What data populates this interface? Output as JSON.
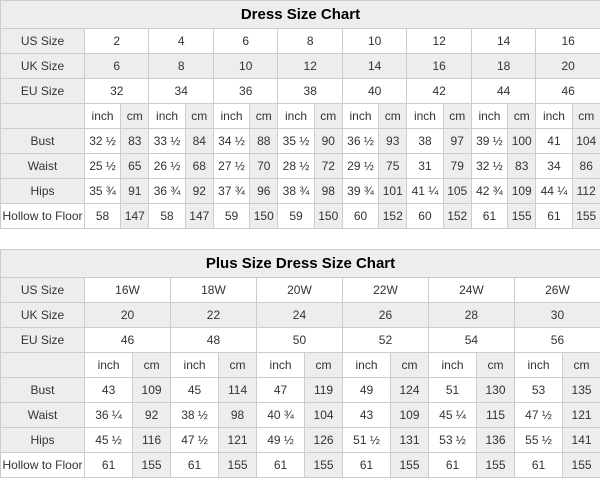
{
  "colors": {
    "shade": "#ededed",
    "border": "#cccccc",
    "text": "#333333",
    "title_text": "#000000",
    "background": "#ffffff"
  },
  "tables": [
    {
      "title": "Dress Size Chart",
      "corner_label": "",
      "unit_labels": [
        "inch",
        "cm"
      ],
      "size_rows": [
        {
          "label": "US Size",
          "shaded": false,
          "values": [
            "2",
            "4",
            "6",
            "8",
            "10",
            "12",
            "14",
            "16"
          ]
        },
        {
          "label": "UK Size",
          "shaded": true,
          "values": [
            "6",
            "8",
            "10",
            "12",
            "14",
            "16",
            "18",
            "20"
          ]
        },
        {
          "label": "EU Size",
          "shaded": false,
          "values": [
            "32",
            "34",
            "36",
            "38",
            "40",
            "42",
            "44",
            "46"
          ]
        }
      ],
      "measure_rows": [
        {
          "label": "Bust",
          "label_shaded": true,
          "values": [
            [
              "32 ½",
              "83"
            ],
            [
              "33 ½",
              "84"
            ],
            [
              "34 ½",
              "88"
            ],
            [
              "35 ½",
              "90"
            ],
            [
              "36 ½",
              "93"
            ],
            [
              "38",
              "97"
            ],
            [
              "39 ½",
              "100"
            ],
            [
              "41",
              "104"
            ]
          ]
        },
        {
          "label": "Waist",
          "label_shaded": true,
          "values": [
            [
              "25 ½",
              "65"
            ],
            [
              "26 ½",
              "68"
            ],
            [
              "27 ½",
              "70"
            ],
            [
              "28 ½",
              "72"
            ],
            [
              "29 ½",
              "75"
            ],
            [
              "31",
              "79"
            ],
            [
              "32 ½",
              "83"
            ],
            [
              "34",
              "86"
            ]
          ]
        },
        {
          "label": "Hips",
          "label_shaded": true,
          "values": [
            [
              "35 ¾",
              "91"
            ],
            [
              "36 ¾",
              "92"
            ],
            [
              "37 ¾",
              "96"
            ],
            [
              "38 ¾",
              "98"
            ],
            [
              "39 ¾",
              "101"
            ],
            [
              "41 ¼",
              "105"
            ],
            [
              "42 ¾",
              "109"
            ],
            [
              "44 ¼",
              "112"
            ]
          ]
        },
        {
          "label": "Hollow to Floor",
          "label_shaded": false,
          "values": [
            [
              "58",
              "147"
            ],
            [
              "58",
              "147"
            ],
            [
              "59",
              "150"
            ],
            [
              "59",
              "150"
            ],
            [
              "60",
              "152"
            ],
            [
              "60",
              "152"
            ],
            [
              "61",
              "155"
            ],
            [
              "61",
              "155"
            ]
          ]
        }
      ]
    },
    {
      "title": "Plus Size Dress Size Chart",
      "corner_label": "",
      "unit_labels": [
        "inch",
        "cm"
      ],
      "size_rows": [
        {
          "label": "US Size",
          "shaded": false,
          "values": [
            "16W",
            "18W",
            "20W",
            "22W",
            "24W",
            "26W"
          ]
        },
        {
          "label": "UK Size",
          "shaded": true,
          "values": [
            "20",
            "22",
            "24",
            "26",
            "28",
            "30"
          ]
        },
        {
          "label": "EU Size",
          "shaded": false,
          "values": [
            "46",
            "48",
            "50",
            "52",
            "54",
            "56"
          ]
        }
      ],
      "measure_rows": [
        {
          "label": "Bust",
          "label_shaded": true,
          "values": [
            [
              "43",
              "109"
            ],
            [
              "45",
              "114"
            ],
            [
              "47",
              "119"
            ],
            [
              "49",
              "124"
            ],
            [
              "51",
              "130"
            ],
            [
              "53",
              "135"
            ]
          ]
        },
        {
          "label": "Waist",
          "label_shaded": true,
          "values": [
            [
              "36 ¼",
              "92"
            ],
            [
              "38 ½",
              "98"
            ],
            [
              "40 ¾",
              "104"
            ],
            [
              "43",
              "109"
            ],
            [
              "45 ¼",
              "115"
            ],
            [
              "47 ½",
              "121"
            ]
          ]
        },
        {
          "label": "Hips",
          "label_shaded": true,
          "values": [
            [
              "45 ½",
              "116"
            ],
            [
              "47 ½",
              "121"
            ],
            [
              "49 ½",
              "126"
            ],
            [
              "51 ½",
              "131"
            ],
            [
              "53 ½",
              "136"
            ],
            [
              "55 ½",
              "141"
            ]
          ]
        },
        {
          "label": "Hollow to Floor",
          "label_shaded": false,
          "values": [
            [
              "61",
              "155"
            ],
            [
              "61",
              "155"
            ],
            [
              "61",
              "155"
            ],
            [
              "61",
              "155"
            ],
            [
              "61",
              "155"
            ],
            [
              "61",
              "155"
            ]
          ]
        }
      ]
    }
  ]
}
